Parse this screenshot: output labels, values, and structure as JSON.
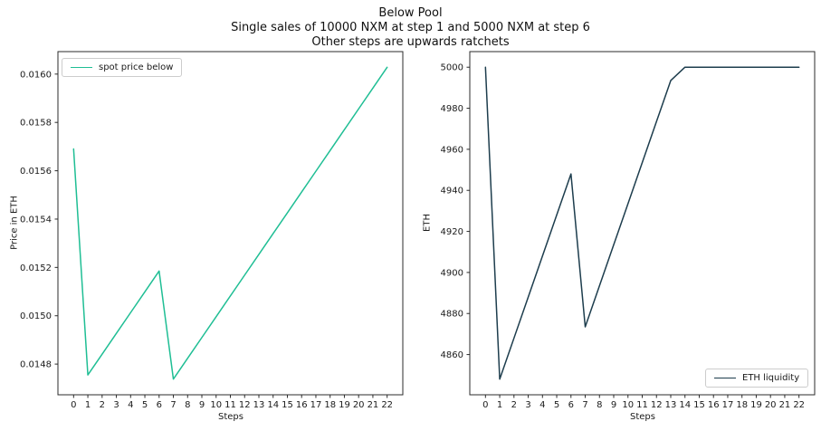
{
  "figure": {
    "title_lines": [
      "Below Pool",
      "Single sales of 10000 NXM at step 1 and 5000 NXM at step 6",
      "Other steps are upwards ratchets"
    ]
  },
  "chart_data": [
    {
      "type": "line",
      "line_name": "spot-price-below-line",
      "legend_label": "spot price below",
      "legend_position": "upper-left",
      "line_color": "#1fbe94",
      "xlabel": "Steps",
      "ylabel": "Price in ETH",
      "grid": false,
      "x": [
        0,
        1,
        2,
        3,
        4,
        5,
        6,
        7,
        8,
        9,
        10,
        11,
        12,
        13,
        14,
        15,
        16,
        17,
        18,
        19,
        20,
        21,
        22
      ],
      "values": [
        0.01569,
        0.014755,
        0.014841,
        0.014927,
        0.015013,
        0.015099,
        0.015185,
        0.014738,
        0.014824,
        0.01491,
        0.014996,
        0.015082,
        0.015168,
        0.015254,
        0.01534,
        0.015426,
        0.015512,
        0.015598,
        0.015684,
        0.01577,
        0.015856,
        0.015942,
        0.016028
      ],
      "xlim": [
        -1.1,
        23.1
      ],
      "ylim": [
        0.014673,
        0.016093
      ],
      "xticks": [
        0,
        1,
        2,
        3,
        4,
        5,
        6,
        7,
        8,
        9,
        10,
        11,
        12,
        13,
        14,
        15,
        16,
        17,
        18,
        19,
        20,
        21,
        22
      ],
      "yticks": [
        0.0148,
        0.015,
        0.0152,
        0.0154,
        0.0156,
        0.0158,
        0.016
      ],
      "ytick_labels": [
        "0.0148",
        "0.0150",
        "0.0152",
        "0.0154",
        "0.0156",
        "0.0158",
        "0.0160"
      ]
    },
    {
      "type": "line",
      "line_name": "eth-liquidity-line",
      "legend_label": "ETH liquidity",
      "legend_position": "lower-right",
      "line_color": "#1d3d4d",
      "xlabel": "Steps",
      "ylabel": "ETH",
      "grid": false,
      "x": [
        0,
        1,
        2,
        3,
        4,
        5,
        6,
        7,
        8,
        9,
        10,
        11,
        12,
        13,
        14,
        15,
        16,
        17,
        18,
        19,
        20,
        21,
        22
      ],
      "values": [
        5000,
        4848,
        4868,
        4888,
        4908,
        4928,
        4948,
        4873.5,
        4893.5,
        4913.5,
        4933.5,
        4953.5,
        4973.5,
        4993.5,
        5000,
        5000,
        5000,
        5000,
        5000,
        5000,
        5000,
        5000,
        5000
      ],
      "xlim": [
        -1.1,
        23.1
      ],
      "ylim": [
        4840.4,
        5007.6
      ],
      "xticks": [
        0,
        1,
        2,
        3,
        4,
        5,
        6,
        7,
        8,
        9,
        10,
        11,
        12,
        13,
        14,
        15,
        16,
        17,
        18,
        19,
        20,
        21,
        22
      ],
      "yticks": [
        4860,
        4880,
        4900,
        4920,
        4940,
        4960,
        4980,
        5000
      ],
      "ytick_labels": [
        "4860",
        "4880",
        "4900",
        "4920",
        "4940",
        "4960",
        "4980",
        "5000"
      ]
    }
  ]
}
